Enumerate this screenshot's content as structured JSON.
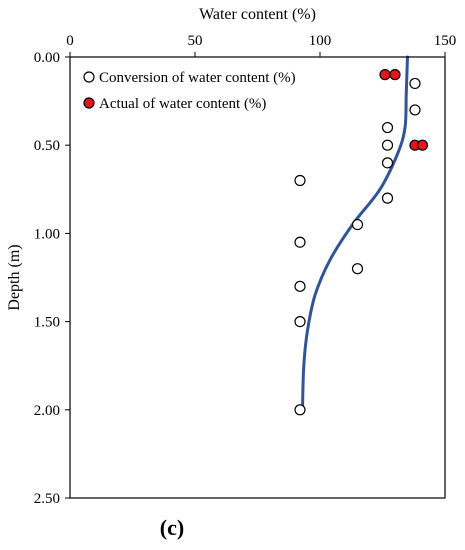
{
  "chart_data": {
    "type": "scatter",
    "xlabel": "Water content (%)",
    "ylabel": "Depth (m)",
    "panel_label": "(c)",
    "x_axis_position": "top",
    "y_axis_inverted": true,
    "xlim": [
      0,
      150
    ],
    "ylim": [
      0,
      2.5
    ],
    "x_ticks": [
      0,
      50,
      100,
      150
    ],
    "x_tick_labels": [
      "0",
      "50",
      "100",
      "150"
    ],
    "y_ticks": [
      0,
      0.5,
      1.0,
      1.5,
      2.0,
      2.5
    ],
    "y_tick_labels": [
      "0.00",
      "0.50",
      "1.00",
      "1.50",
      "2.00",
      "2.50"
    ],
    "grid": false,
    "legend_position": "top-left",
    "series": [
      {
        "name": "Conversion of water content (%)",
        "kind": "scatter",
        "marker": "open-circle",
        "color": "#000000",
        "points": [
          {
            "x": 138,
            "y": 0.15
          },
          {
            "x": 138,
            "y": 0.3
          },
          {
            "x": 127,
            "y": 0.4
          },
          {
            "x": 127,
            "y": 0.5
          },
          {
            "x": 127,
            "y": 0.6
          },
          {
            "x": 92,
            "y": 0.7
          },
          {
            "x": 127,
            "y": 0.8
          },
          {
            "x": 115,
            "y": 0.95
          },
          {
            "x": 92,
            "y": 1.05
          },
          {
            "x": 115,
            "y": 1.2
          },
          {
            "x": 92,
            "y": 1.3
          },
          {
            "x": 92,
            "y": 1.5
          },
          {
            "x": 92,
            "y": 2.0
          }
        ]
      },
      {
        "name": "Actual of water content (%)",
        "kind": "scatter",
        "marker": "filled-circle",
        "color": "#e8141b",
        "points": [
          {
            "x": 126,
            "y": 0.1
          },
          {
            "x": 130,
            "y": 0.1
          },
          {
            "x": 138,
            "y": 0.5
          },
          {
            "x": 141,
            "y": 0.5
          }
        ]
      },
      {
        "kind": "line",
        "color": "#2f5597",
        "points": [
          {
            "x": 135,
            "y": 0.0
          },
          {
            "x": 134.5,
            "y": 0.2
          },
          {
            "x": 134,
            "y": 0.4
          },
          {
            "x": 131,
            "y": 0.55
          },
          {
            "x": 124,
            "y": 0.75
          },
          {
            "x": 113,
            "y": 0.95
          },
          {
            "x": 104,
            "y": 1.15
          },
          {
            "x": 98,
            "y": 1.35
          },
          {
            "x": 95,
            "y": 1.55
          },
          {
            "x": 93.5,
            "y": 1.75
          },
          {
            "x": 93,
            "y": 2.0
          }
        ]
      }
    ]
  }
}
